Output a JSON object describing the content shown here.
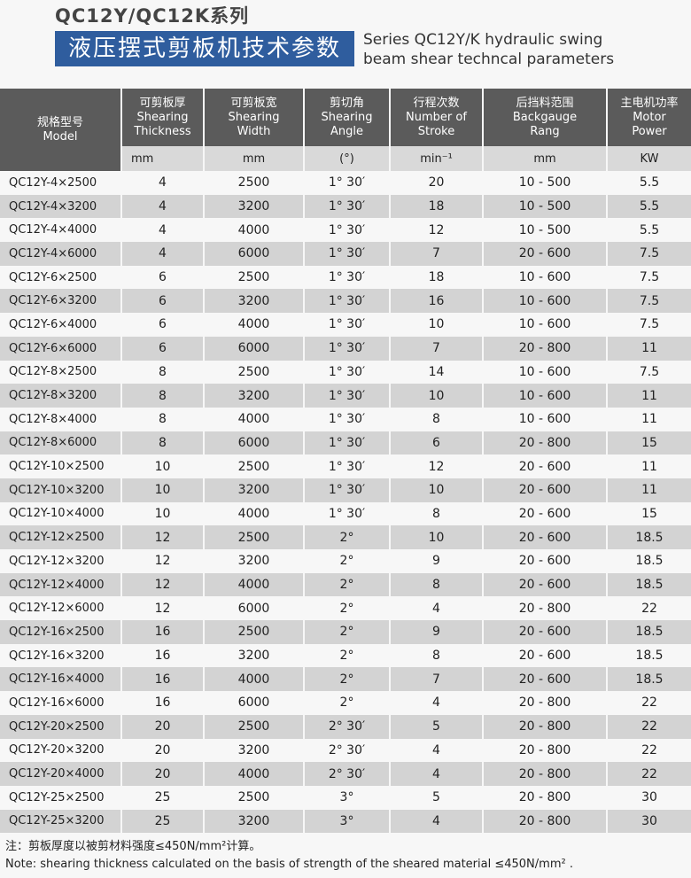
{
  "header": {
    "series": "QC12Y/QC12K系列",
    "title_cn": "液压摆式剪板机技术参数",
    "title_en": [
      "Series QC12Y/K hydraulic swing",
      "beam shear techncal parameters"
    ]
  },
  "table": {
    "columns": [
      [
        "规格型号",
        "Model"
      ],
      [
        "可剪板厚",
        "Shearing",
        "Thickness"
      ],
      [
        "可剪板宽",
        "Shearing",
        "Width"
      ],
      [
        "剪切角",
        "Shearing",
        "Angle"
      ],
      [
        "行程次数",
        "Number of",
        "Stroke"
      ],
      [
        "后挡料范围",
        "Backgauge",
        "Rang"
      ],
      [
        "主电机功率",
        "Motor",
        "Power"
      ]
    ],
    "units": [
      "mm",
      "mm",
      "(°)",
      "min⁻¹",
      "mm",
      "KW"
    ],
    "rows": [
      [
        "QC12Y-4×2500",
        "4",
        "2500",
        "1° 30′",
        "20",
        "10 - 500",
        "5.5"
      ],
      [
        "QC12Y-4×3200",
        "4",
        "3200",
        "1° 30′",
        "18",
        "10 - 500",
        "5.5"
      ],
      [
        "QC12Y-4×4000",
        "4",
        "4000",
        "1° 30′",
        "12",
        "10 - 500",
        "5.5"
      ],
      [
        "QC12Y-4×6000",
        "4",
        "6000",
        "1° 30′",
        "7",
        "20 - 600",
        "7.5"
      ],
      [
        "QC12Y-6×2500",
        "6",
        "2500",
        "1° 30′",
        "18",
        "10 - 600",
        "7.5"
      ],
      [
        "QC12Y-6×3200",
        "6",
        "3200",
        "1° 30′",
        "16",
        "10 - 600",
        "7.5"
      ],
      [
        "QC12Y-6×4000",
        "6",
        "4000",
        "1° 30′",
        "10",
        "10 - 600",
        "7.5"
      ],
      [
        "QC12Y-6×6000",
        "6",
        "6000",
        "1° 30′",
        "7",
        "20 - 800",
        "11"
      ],
      [
        "QC12Y-8×2500",
        "8",
        "2500",
        "1° 30′",
        "14",
        "10 - 600",
        "7.5"
      ],
      [
        "QC12Y-8×3200",
        "8",
        "3200",
        "1° 30′",
        "10",
        "10 - 600",
        "11"
      ],
      [
        "QC12Y-8×4000",
        "8",
        "4000",
        "1° 30′",
        "8",
        "10 - 600",
        "11"
      ],
      [
        "QC12Y-8×6000",
        "8",
        "6000",
        "1° 30′",
        "6",
        "20 - 800",
        "15"
      ],
      [
        "QC12Y-10×2500",
        "10",
        "2500",
        "1° 30′",
        "12",
        "20 - 600",
        "11"
      ],
      [
        "QC12Y-10×3200",
        "10",
        "3200",
        "1° 30′",
        "10",
        "20 - 600",
        "11"
      ],
      [
        "QC12Y-10×4000",
        "10",
        "4000",
        "1° 30′",
        "8",
        "20 - 600",
        "15"
      ],
      [
        "QC12Y-12×2500",
        "12",
        "2500",
        "2°",
        "10",
        "20 - 600",
        "18.5"
      ],
      [
        "QC12Y-12×3200",
        "12",
        "3200",
        "2°",
        "9",
        "20 - 600",
        "18.5"
      ],
      [
        "QC12Y-12×4000",
        "12",
        "4000",
        "2°",
        "8",
        "20 - 600",
        "18.5"
      ],
      [
        "QC12Y-12×6000",
        "12",
        "6000",
        "2°",
        "4",
        "20 - 800",
        "22"
      ],
      [
        "QC12Y-16×2500",
        "16",
        "2500",
        "2°",
        "9",
        "20 - 600",
        "18.5"
      ],
      [
        "QC12Y-16×3200",
        "16",
        "3200",
        "2°",
        "8",
        "20 - 600",
        "18.5"
      ],
      [
        "QC12Y-16×4000",
        "16",
        "4000",
        "2°",
        "7",
        "20 - 600",
        "18.5"
      ],
      [
        "QC12Y-16×6000",
        "16",
        "6000",
        "2°",
        "4",
        "20 - 800",
        "22"
      ],
      [
        "QC12Y-20×2500",
        "20",
        "2500",
        "2° 30′",
        "5",
        "20 - 800",
        "22"
      ],
      [
        "QC12Y-20×3200",
        "20",
        "3200",
        "2° 30′",
        "4",
        "20 - 800",
        "22"
      ],
      [
        "QC12Y-20×4000",
        "20",
        "4000",
        "2° 30′",
        "4",
        "20 - 800",
        "22"
      ],
      [
        "QC12Y-25×2500",
        "25",
        "2500",
        "3°",
        "5",
        "20 - 800",
        "30"
      ],
      [
        "QC12Y-25×3200",
        "25",
        "3200",
        "3°",
        "4",
        "20 - 800",
        "30"
      ]
    ]
  },
  "notes": [
    "注：剪板厚度以被剪材料强度≤450N/mm²计算。",
    "Note: shearing thickness calculated on the basis of strength of the sheared material ≤450N/mm² ."
  ]
}
